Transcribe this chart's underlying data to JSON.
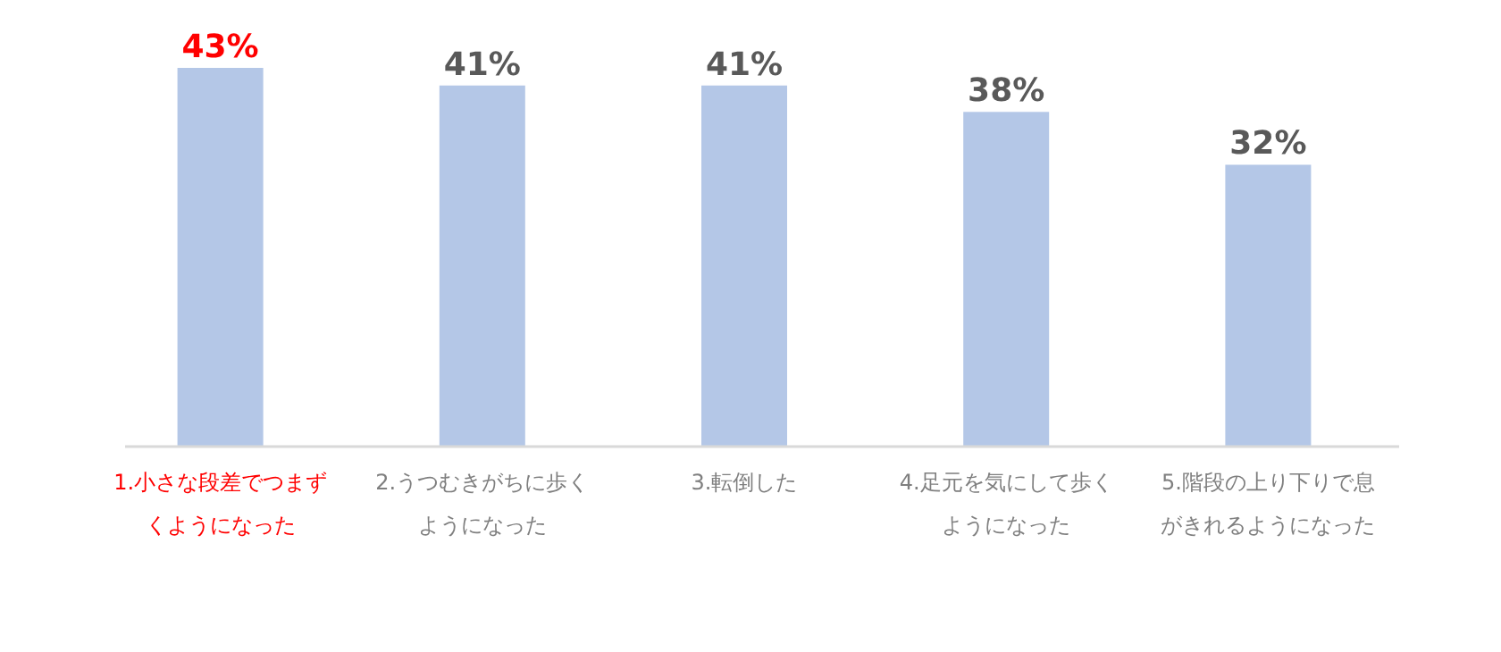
{
  "chart_data": {
    "type": "bar",
    "categories": [
      "1.小さな段差でつまずくようになった",
      "2.うつむきがちに歩くようになった",
      "3.転倒した",
      "4.足元を気にして歩くようになった",
      "5.階段の上り下りで息がきれるようになった"
    ],
    "values": [
      43,
      41,
      41,
      38,
      32
    ],
    "value_labels": [
      "43%",
      "41%",
      "41%",
      "38%",
      "32%"
    ],
    "color": "#b4c7e7"
  }
}
